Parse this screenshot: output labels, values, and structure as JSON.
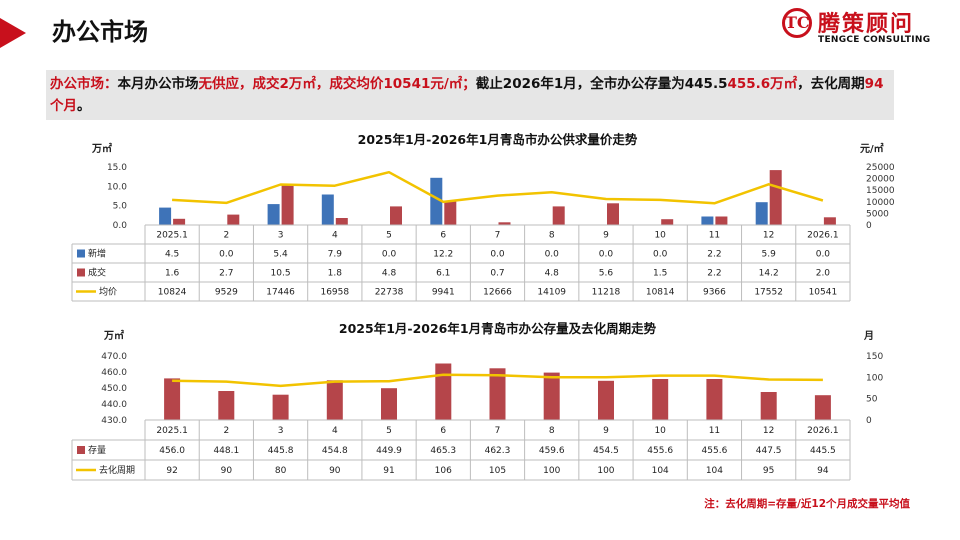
{
  "header": {
    "title": "办公市场"
  },
  "logo": {
    "cn": "腾策顾问",
    "en": "TENGCE CONSULTING",
    "mark": "TC"
  },
  "summary": {
    "p1": "办公市场：",
    "p2": "本月办公市场",
    "p3": "无供应，成交2万㎡，成交均价10541元/㎡；",
    "p4": "截止2026年1月，全市办公存量为445.5",
    "p5": "455.6万㎡",
    "p6": "，去化周期",
    "p7": "94个月",
    "p8": "。"
  },
  "note": "注：去化周期=存量/近12个月成交量平均值",
  "colors": {
    "accent": "#c8101c",
    "blue": "#3e73b8",
    "bar_red": "#b5454a",
    "line": "#f2c300"
  },
  "chart_data": [
    {
      "type": "bar",
      "title": "2025年1月-2026年1月青岛市办公供求量价走势",
      "ylabel": "万㎡",
      "y2label": "元/㎡",
      "ylim": [
        0,
        15
      ],
      "yticks": [
        "15.0",
        "10.0",
        "5.0",
        "0.0"
      ],
      "y2lim": [
        0,
        25000
      ],
      "y2ticks": [
        "25000",
        "20000",
        "15000",
        "10000",
        "5000",
        "0"
      ],
      "categories": [
        "2025.1",
        "2",
        "3",
        "4",
        "5",
        "6",
        "7",
        "8",
        "9",
        "10",
        "11",
        "12",
        "2026.1"
      ],
      "series": [
        {
          "name": "新增",
          "kind": "bar",
          "color": "#3e73b8",
          "values": [
            4.5,
            0.0,
            5.4,
            7.9,
            0.0,
            12.2,
            0.0,
            0.0,
            0.0,
            0.0,
            2.2,
            5.9,
            0.0
          ],
          "labels": [
            "4.5",
            "0.0",
            "5.4",
            "7.9",
            "0.0",
            "12.2",
            "0.0",
            "0.0",
            "0.0",
            "0.0",
            "2.2",
            "5.9",
            "0.0"
          ]
        },
        {
          "name": "成交",
          "kind": "bar",
          "color": "#b5454a",
          "values": [
            1.6,
            2.7,
            10.5,
            1.8,
            4.8,
            6.1,
            0.7,
            4.8,
            5.6,
            1.5,
            2.2,
            14.2,
            2.0
          ],
          "labels": [
            "1.6",
            "2.7",
            "10.5",
            "1.8",
            "4.8",
            "6.1",
            "0.7",
            "4.8",
            "5.6",
            "1.5",
            "2.2",
            "14.2",
            "2.0"
          ]
        },
        {
          "name": "均价",
          "kind": "line",
          "axis": "right",
          "color": "#f2c300",
          "values": [
            10824,
            9529,
            17446,
            16958,
            22738,
            9941,
            12666,
            14109,
            11218,
            10814,
            9366,
            17552,
            10541
          ],
          "labels": [
            "10824",
            "9529",
            "17446",
            "16958",
            "22738",
            "9941",
            "12666",
            "14109",
            "11218",
            "10814",
            "9366",
            "17552",
            "10541"
          ]
        }
      ]
    },
    {
      "type": "bar",
      "title": "2025年1月-2026年1月青岛市办公存量及去化周期走势",
      "ylabel": "万㎡",
      "y2label": "月",
      "ylim": [
        430,
        470
      ],
      "yticks": [
        "470.0",
        "460.0",
        "450.0",
        "440.0",
        "430.0"
      ],
      "y2lim": [
        0,
        150
      ],
      "y2ticks": [
        "150",
        "100",
        "50",
        "0"
      ],
      "categories": [
        "2025.1",
        "2",
        "3",
        "4",
        "5",
        "6",
        "7",
        "8",
        "9",
        "10",
        "11",
        "12",
        "2026.1"
      ],
      "series": [
        {
          "name": "存量",
          "kind": "bar",
          "color": "#b5454a",
          "values": [
            456.0,
            448.1,
            445.8,
            454.8,
            449.9,
            465.3,
            462.3,
            459.6,
            454.5,
            455.6,
            455.6,
            447.5,
            445.5
          ],
          "labels": [
            "456.0",
            "448.1",
            "445.8",
            "454.8",
            "449.9",
            "465.3",
            "462.3",
            "459.6",
            "454.5",
            "455.6",
            "455.6",
            "447.5",
            "445.5"
          ]
        },
        {
          "name": "去化周期",
          "kind": "line",
          "axis": "right",
          "color": "#f2c300",
          "values": [
            92,
            90,
            80,
            90,
            91,
            106,
            105,
            100,
            100,
            104,
            104,
            95,
            94
          ],
          "labels": [
            "92",
            "90",
            "80",
            "90",
            "91",
            "106",
            "105",
            "100",
            "100",
            "104",
            "104",
            "95",
            "94"
          ]
        }
      ]
    }
  ]
}
